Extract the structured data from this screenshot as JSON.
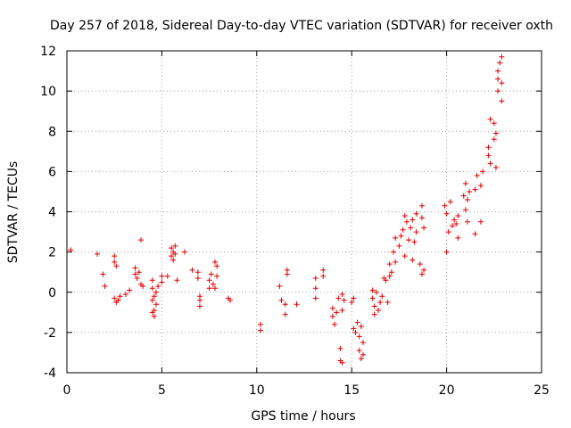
{
  "chart_data": {
    "type": "scatter",
    "title": "Day 257 of 2018, Sidereal Day-to-day VTEC variation (SDTVAR) for receiver oxth",
    "xlabel": "GPS time / hours",
    "ylabel": "SDTVAR / TECUs",
    "xlim": [
      0,
      25
    ],
    "ylim": [
      -4,
      12
    ],
    "xticks": [
      "0",
      "5",
      "10",
      "15",
      "20",
      "25"
    ],
    "yticks": [
      "-4",
      "-2",
      "0",
      "2",
      "4",
      "6",
      "8",
      "10",
      "12"
    ],
    "grid": true,
    "marker": "+",
    "color": "#e00000",
    "series": [
      {
        "name": "SDTVAR",
        "points": [
          [
            0.2,
            2.1
          ],
          [
            1.6,
            1.9
          ],
          [
            1.9,
            0.9
          ],
          [
            2.0,
            0.3
          ],
          [
            2.5,
            1.8
          ],
          [
            2.5,
            1.5
          ],
          [
            2.6,
            1.3
          ],
          [
            2.5,
            -0.3
          ],
          [
            2.6,
            -0.5
          ],
          [
            2.7,
            -0.4
          ],
          [
            2.8,
            -0.2
          ],
          [
            3.1,
            -0.1
          ],
          [
            3.3,
            0.1
          ],
          [
            3.6,
            1.2
          ],
          [
            3.6,
            0.9
          ],
          [
            3.7,
            0.7
          ],
          [
            3.8,
            1.0
          ],
          [
            3.9,
            2.6
          ],
          [
            3.9,
            0.4
          ],
          [
            4.0,
            0.3
          ],
          [
            4.5,
            0.6
          ],
          [
            4.5,
            0.2
          ],
          [
            4.5,
            -0.4
          ],
          [
            4.6,
            -0.9
          ],
          [
            4.6,
            -1.2
          ],
          [
            4.7,
            0.0
          ],
          [
            4.7,
            -0.6
          ],
          [
            4.8,
            0.3
          ],
          [
            4.5,
            -1.0
          ],
          [
            4.6,
            -0.2
          ],
          [
            5.0,
            0.5
          ],
          [
            5.0,
            0.8
          ],
          [
            5.3,
            0.8
          ],
          [
            5.5,
            2.2
          ],
          [
            5.5,
            1.8
          ],
          [
            5.6,
            1.6
          ],
          [
            5.6,
            2.0
          ],
          [
            5.7,
            1.9
          ],
          [
            5.7,
            2.3
          ],
          [
            5.8,
            0.6
          ],
          [
            6.2,
            2.0
          ],
          [
            6.6,
            1.1
          ],
          [
            6.9,
            1.0
          ],
          [
            6.9,
            0.7
          ],
          [
            7.0,
            -0.4
          ],
          [
            7.0,
            -0.7
          ],
          [
            7.0,
            -0.2
          ],
          [
            7.5,
            0.6
          ],
          [
            7.5,
            0.2
          ],
          [
            7.6,
            0.9
          ],
          [
            7.7,
            0.4
          ],
          [
            7.8,
            0.2
          ],
          [
            7.8,
            1.5
          ],
          [
            7.9,
            1.3
          ],
          [
            7.9,
            0.8
          ],
          [
            8.5,
            -0.3
          ],
          [
            8.6,
            -0.4
          ],
          [
            10.2,
            -1.6
          ],
          [
            10.2,
            -1.9
          ],
          [
            11.2,
            0.3
          ],
          [
            11.3,
            -0.4
          ],
          [
            11.5,
            -0.6
          ],
          [
            11.5,
            -1.1
          ],
          [
            11.6,
            1.1
          ],
          [
            11.6,
            0.9
          ],
          [
            12.1,
            -0.6
          ],
          [
            13.1,
            0.7
          ],
          [
            13.1,
            0.2
          ],
          [
            13.1,
            -0.3
          ],
          [
            13.5,
            1.1
          ],
          [
            13.5,
            0.8
          ],
          [
            14.0,
            -0.8
          ],
          [
            14.0,
            -1.2
          ],
          [
            14.1,
            -1.6
          ],
          [
            14.2,
            -1.0
          ],
          [
            14.3,
            -0.3
          ],
          [
            14.4,
            -2.8
          ],
          [
            14.4,
            -3.4
          ],
          [
            14.5,
            -3.5
          ],
          [
            14.5,
            -0.1
          ],
          [
            14.5,
            -0.9
          ],
          [
            14.6,
            -0.4
          ],
          [
            15.0,
            -0.5
          ],
          [
            15.1,
            -0.3
          ],
          [
            15.1,
            -1.8
          ],
          [
            15.2,
            -2.0
          ],
          [
            15.3,
            -1.5
          ],
          [
            15.4,
            -2.2
          ],
          [
            15.4,
            -2.9
          ],
          [
            15.5,
            -3.3
          ],
          [
            15.5,
            -1.7
          ],
          [
            15.6,
            -2.5
          ],
          [
            15.6,
            -3.1
          ],
          [
            16.1,
            0.1
          ],
          [
            16.1,
            -0.3
          ],
          [
            16.2,
            -0.7
          ],
          [
            16.2,
            -1.1
          ],
          [
            16.3,
            0.0
          ],
          [
            16.4,
            -0.9
          ],
          [
            16.5,
            -0.5
          ],
          [
            16.6,
            -0.2
          ],
          [
            16.7,
            0.7
          ],
          [
            16.8,
            0.6
          ],
          [
            16.9,
            -0.5
          ],
          [
            17.0,
            0.8
          ],
          [
            17.0,
            1.4
          ],
          [
            17.1,
            1.0
          ],
          [
            17.2,
            2.0
          ],
          [
            17.3,
            2.7
          ],
          [
            17.3,
            1.5
          ],
          [
            17.5,
            2.3
          ],
          [
            17.6,
            2.8
          ],
          [
            17.7,
            3.1
          ],
          [
            17.8,
            3.8
          ],
          [
            17.8,
            1.8
          ],
          [
            17.9,
            3.5
          ],
          [
            18.0,
            2.6
          ],
          [
            18.1,
            3.2
          ],
          [
            18.2,
            3.6
          ],
          [
            18.2,
            1.6
          ],
          [
            18.3,
            2.5
          ],
          [
            18.4,
            3.0
          ],
          [
            18.4,
            3.9
          ],
          [
            18.6,
            1.4
          ],
          [
            18.7,
            0.9
          ],
          [
            18.7,
            4.3
          ],
          [
            18.7,
            3.7
          ],
          [
            18.8,
            3.2
          ],
          [
            18.8,
            1.1
          ],
          [
            19.9,
            4.3
          ],
          [
            20.0,
            2.0
          ],
          [
            20.0,
            3.9
          ],
          [
            20.1,
            3.0
          ],
          [
            20.2,
            4.5
          ],
          [
            20.3,
            3.3
          ],
          [
            20.4,
            3.6
          ],
          [
            20.5,
            3.4
          ],
          [
            20.6,
            3.8
          ],
          [
            20.6,
            2.7
          ],
          [
            20.9,
            4.8
          ],
          [
            21.0,
            5.4
          ],
          [
            21.0,
            4.1
          ],
          [
            21.1,
            3.5
          ],
          [
            21.1,
            4.6
          ],
          [
            21.2,
            5.0
          ],
          [
            21.5,
            2.9
          ],
          [
            21.5,
            5.1
          ],
          [
            21.6,
            5.8
          ],
          [
            21.8,
            5.3
          ],
          [
            21.8,
            3.5
          ],
          [
            21.9,
            6.0
          ],
          [
            22.2,
            6.8
          ],
          [
            22.2,
            7.2
          ],
          [
            22.3,
            8.6
          ],
          [
            22.3,
            6.4
          ],
          [
            22.5,
            7.6
          ],
          [
            22.5,
            8.4
          ],
          [
            22.6,
            7.9
          ],
          [
            22.6,
            6.2
          ],
          [
            22.7,
            10.0
          ],
          [
            22.7,
            10.6
          ],
          [
            22.7,
            11.0
          ],
          [
            22.8,
            11.4
          ],
          [
            22.9,
            11.7
          ],
          [
            22.9,
            10.4
          ],
          [
            22.9,
            9.5
          ]
        ]
      }
    ]
  }
}
